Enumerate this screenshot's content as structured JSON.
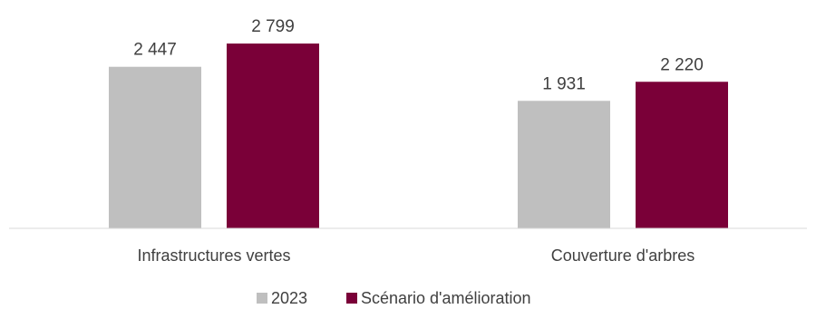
{
  "chart_data": {
    "type": "bar",
    "categories": [
      "Infrastructures vertes",
      "Couverture d'arbres"
    ],
    "series": [
      {
        "name": "2023",
        "values": [
          2447,
          1931
        ],
        "labels": [
          "2 447",
          "1 931"
        ],
        "color": "#bfbfbf"
      },
      {
        "name": "Scénario d'amélioration",
        "values": [
          2799,
          2220
        ],
        "labels": [
          "2 799",
          "2 220"
        ],
        "color": "#7a0038"
      }
    ],
    "title": "",
    "xlabel": "",
    "ylabel": "",
    "ylim": [
      0,
      3000
    ],
    "grid": false,
    "legend_position": "bottom"
  }
}
